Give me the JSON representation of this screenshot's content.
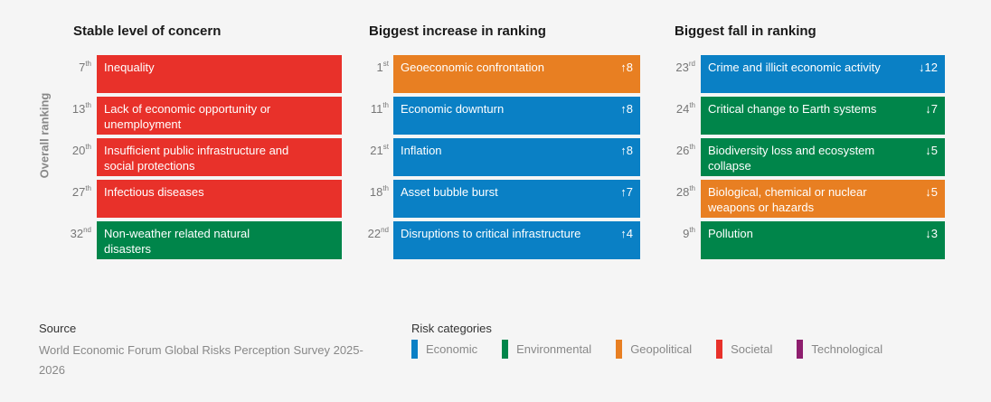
{
  "colors": {
    "Economic": "#0a80c5",
    "Environmental": "#00854a",
    "Geopolitical": "#e87f22",
    "Societal": "#e8312a",
    "Technological": "#8e1e6e"
  },
  "chart_data": {
    "type": "table",
    "axis_label": "Overall ranking",
    "groups": [
      {
        "title": "Stable level of concern",
        "items": [
          {
            "rank": "7",
            "suffix": "th",
            "label": "Inequality",
            "category": "Societal",
            "change": ""
          },
          {
            "rank": "13",
            "suffix": "th",
            "label": "Lack of economic opportunity or unemployment",
            "category": "Societal",
            "change": ""
          },
          {
            "rank": "20",
            "suffix": "th",
            "label": "Insufficient public infrastructure and social protections",
            "category": "Societal",
            "change": ""
          },
          {
            "rank": "27",
            "suffix": "th",
            "label": "Infectious diseases",
            "category": "Societal",
            "change": ""
          },
          {
            "rank": "32",
            "suffix": "nd",
            "label": "Non-weather related natural disasters",
            "category": "Environmental",
            "change": ""
          }
        ]
      },
      {
        "title": "Biggest increase in ranking",
        "items": [
          {
            "rank": "1",
            "suffix": "st",
            "label": "Geoeconomic confrontation",
            "category": "Geopolitical",
            "change": "↑8"
          },
          {
            "rank": "11",
            "suffix": "th",
            "label": "Economic downturn",
            "category": "Economic",
            "change": "↑8"
          },
          {
            "rank": "21",
            "suffix": "st",
            "label": "Inflation",
            "category": "Economic",
            "change": "↑8"
          },
          {
            "rank": "18",
            "suffix": "th",
            "label": "Asset bubble burst",
            "category": "Economic",
            "change": "↑7"
          },
          {
            "rank": "22",
            "suffix": "nd",
            "label": "Disruptions to critical infrastructure",
            "category": "Economic",
            "change": "↑4"
          }
        ]
      },
      {
        "title": "Biggest fall in ranking",
        "items": [
          {
            "rank": "23",
            "suffix": "rd",
            "label": "Crime and illicit economic activity",
            "category": "Economic",
            "change": "↓12"
          },
          {
            "rank": "24",
            "suffix": "th",
            "label": "Critical change to Earth systems",
            "category": "Environmental",
            "change": "↓7"
          },
          {
            "rank": "26",
            "suffix": "th",
            "label": "Biodiversity loss and ecosystem collapse",
            "category": "Environmental",
            "change": "↓5"
          },
          {
            "rank": "28",
            "suffix": "th",
            "label": "Biological, chemical or nuclear weapons or hazards",
            "category": "Geopolitical",
            "change": "↓5"
          },
          {
            "rank": "9",
            "suffix": "th",
            "label": "Pollution",
            "category": "Environmental",
            "change": "↓3"
          }
        ]
      }
    ]
  },
  "source": {
    "heading": "Source",
    "text": "World Economic Forum Global Risks Perception Survey 2025-2026"
  },
  "legend": {
    "heading": "Risk categories",
    "items": [
      "Economic",
      "Environmental",
      "Geopolitical",
      "Societal",
      "Technological"
    ]
  }
}
